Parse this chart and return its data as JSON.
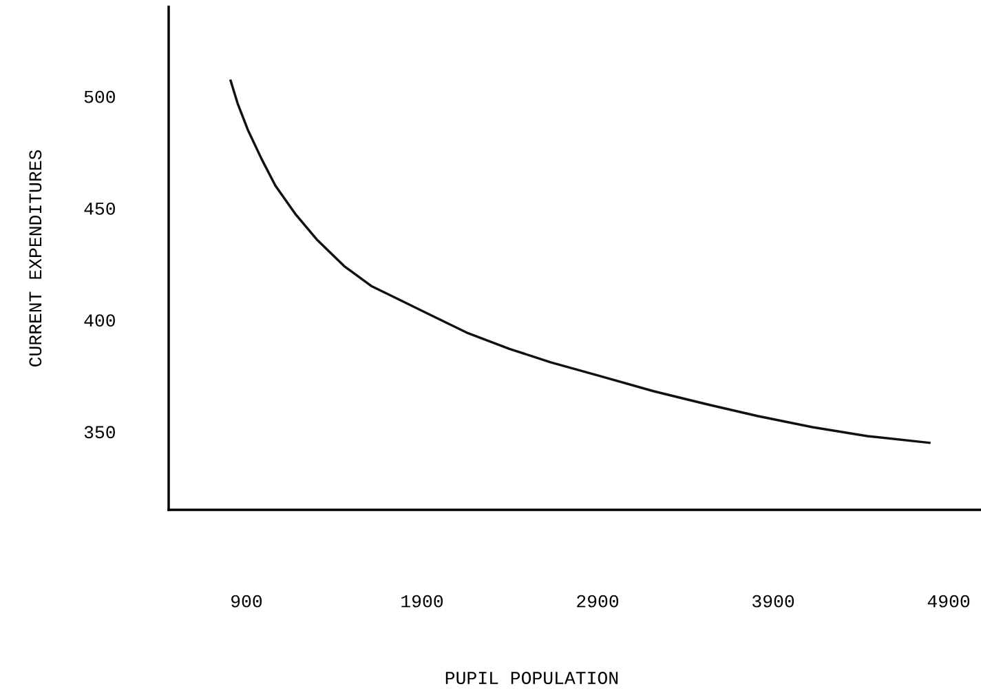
{
  "chart_data": {
    "type": "line",
    "xlabel": "PUPIL POPULATION",
    "ylabel": "CURRENT EXPENDITURES",
    "x": [
      810,
      849,
      908,
      986,
      1065,
      1182,
      1300,
      1457,
      1614,
      1771,
      1927,
      2163,
      2398,
      2633,
      2908,
      3222,
      3535,
      3810,
      4124,
      4437,
      4790
    ],
    "series": [
      {
        "color": "#111111",
        "values": [
          507,
          497,
          485,
          472,
          460,
          447,
          436,
          424,
          415,
          409,
          403,
          394,
          387,
          381,
          375,
          368,
          362,
          357,
          352,
          348,
          345
        ]
      }
    ],
    "xlim": [
      457,
      5084
    ],
    "ylim": [
      315,
      540
    ],
    "xticks": [
      900,
      1900,
      2900,
      3900,
      4900
    ],
    "yticks": [
      350,
      400,
      450,
      500
    ],
    "grid": false,
    "legend": false,
    "marker": "none",
    "line_style": "solid"
  }
}
